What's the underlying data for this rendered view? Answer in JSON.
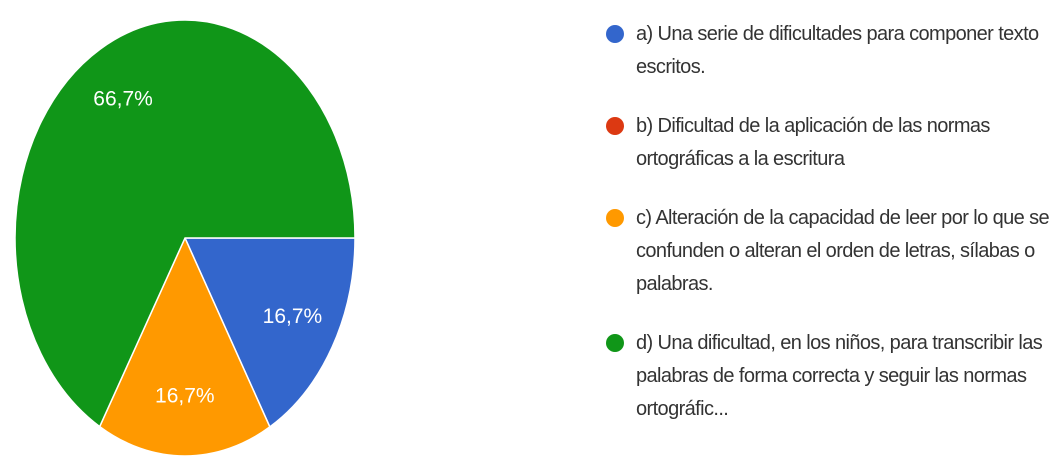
{
  "chart_data": {
    "type": "pie",
    "categories": [
      "a) Una serie de dificultades para componer texto escritos.",
      "b) Dificultad de la aplicación de las normas ortográficas a la escritura",
      "c) Alteración de la capacidad de leer por lo que se confunden o alteran el orden de letras, sílabas o palabras.",
      "d) Una dificultad, en los niños, para transcribir las palabras de forma correcta y seguir las normas ortográfic..."
    ],
    "values": [
      16.7,
      0,
      16.7,
      66.7
    ],
    "value_labels": [
      "16,7%",
      null,
      "16,7%",
      "66,7%"
    ],
    "colors": [
      "#3366cc",
      "#dc3912",
      "#ff9900",
      "#109618"
    ]
  }
}
